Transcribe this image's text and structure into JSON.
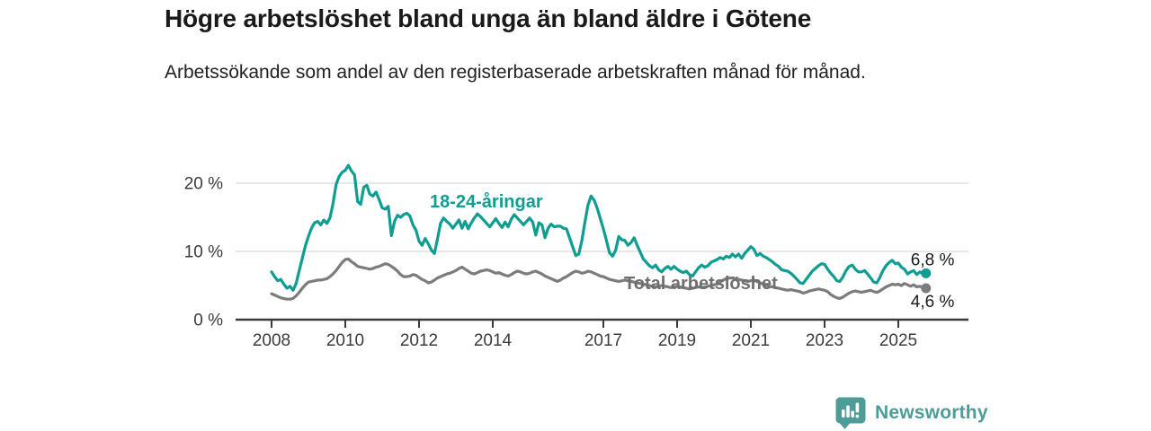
{
  "header": {
    "title": "Högre arbetslöshet bland unga än bland äldre i Götene",
    "subtitle": "Arbetssökande som andel av den registerbaserade arbetskraften månad för månad."
  },
  "footer": {
    "brand": "Newsworthy",
    "brand_color": "#4d9c98"
  },
  "chart_data": {
    "type": "line",
    "title": "Högre arbetslöshet bland unga än bland äldre i Götene",
    "xlabel": "",
    "ylabel": "",
    "x_start_year": 2008,
    "points_per_year": 12,
    "x_ticks": [
      2008,
      2010,
      2012,
      2014,
      2017,
      2019,
      2021,
      2023,
      2025
    ],
    "y_ticks": [
      {
        "value": 0,
        "label": "0 %"
      },
      {
        "value": 10,
        "label": "10 %"
      },
      {
        "value": 20,
        "label": "20 %"
      }
    ],
    "ylim": [
      0,
      24
    ],
    "grid": "horizontal",
    "colors": {
      "grid": "#d9d9d9",
      "axis": "#3a3a3a",
      "tick_text": "#3c3c3c",
      "end_label_text": "#1a1a1a"
    },
    "series": [
      {
        "name": "Total arbetslöshet",
        "color": "#7c7c7c",
        "label_color": "#6f6f6f",
        "end_label": "4,6 %",
        "values": [
          3.8,
          3.6,
          3.4,
          3.2,
          3.1,
          3.0,
          3.0,
          3.1,
          3.5,
          4.0,
          4.6,
          5.1,
          5.5,
          5.6,
          5.7,
          5.8,
          5.8,
          5.9,
          6.0,
          6.3,
          6.7,
          7.2,
          7.8,
          8.4,
          8.8,
          8.9,
          8.5,
          8.2,
          7.8,
          7.7,
          7.6,
          7.5,
          7.4,
          7.5,
          7.7,
          7.8,
          8.0,
          8.2,
          8.1,
          7.8,
          7.5,
          7.1,
          6.6,
          6.3,
          6.3,
          6.4,
          6.6,
          6.5,
          6.2,
          5.9,
          5.7,
          5.4,
          5.5,
          5.8,
          6.1,
          6.3,
          6.5,
          6.7,
          6.8,
          7.0,
          7.2,
          7.5,
          7.7,
          7.4,
          7.1,
          6.8,
          6.7,
          6.9,
          7.1,
          7.2,
          7.3,
          7.2,
          7.0,
          6.8,
          6.9,
          6.7,
          6.5,
          6.4,
          6.6,
          6.9,
          7.1,
          7.0,
          6.8,
          6.7,
          6.8,
          7.0,
          7.1,
          6.9,
          6.7,
          6.4,
          6.2,
          6.0,
          5.8,
          5.6,
          5.8,
          6.1,
          6.3,
          6.6,
          6.9,
          7.1,
          7.0,
          6.8,
          6.9,
          7.1,
          7.0,
          6.8,
          6.6,
          6.4,
          6.3,
          6.1,
          5.9,
          5.8,
          5.7,
          5.6,
          5.7,
          5.8,
          5.7,
          5.6,
          5.5,
          5.4,
          5.3,
          5.2,
          5.1,
          5.0,
          4.9,
          4.8,
          4.9,
          5.0,
          4.9,
          4.8,
          4.7,
          4.8,
          4.9,
          4.8,
          4.7,
          4.6,
          4.5,
          4.6,
          4.7,
          4.8,
          4.7,
          4.8,
          4.9,
          5.0,
          5.1,
          5.2,
          5.5,
          5.8,
          6.0,
          6.1,
          6.1,
          6.0,
          5.9,
          5.8,
          5.7,
          5.6,
          5.7,
          5.8,
          5.6,
          5.4,
          5.2,
          5.0,
          4.9,
          4.8,
          4.7,
          4.6,
          4.5,
          4.4,
          4.3,
          4.4,
          4.3,
          4.2,
          4.1,
          3.9,
          4.0,
          4.2,
          4.3,
          4.4,
          4.5,
          4.4,
          4.3,
          4.1,
          3.7,
          3.4,
          3.2,
          3.1,
          3.3,
          3.6,
          3.9,
          4.1,
          4.2,
          4.1,
          4.0,
          4.1,
          4.2,
          4.3,
          4.1,
          4.0,
          4.2,
          4.5,
          4.8,
          5.0,
          5.2,
          5.1,
          5.2,
          5.0,
          5.3,
          5.1,
          4.9,
          5.1,
          4.8,
          4.9,
          4.7,
          4.6
        ]
      },
      {
        "name": "18-24-åringar",
        "color": "#0e9e91",
        "label_color": "#0e9e91",
        "end_label": "6,8 %",
        "values": [
          7.0,
          6.3,
          5.7,
          5.9,
          5.2,
          4.6,
          4.9,
          4.3,
          5.3,
          7.2,
          9.0,
          10.8,
          12.2,
          13.4,
          14.2,
          14.4,
          13.9,
          14.6,
          14.1,
          14.9,
          17.0,
          19.8,
          21.0,
          21.6,
          21.9,
          22.6,
          21.8,
          21.2,
          17.3,
          16.9,
          19.4,
          19.7,
          18.4,
          18.1,
          18.7,
          17.6,
          16.4,
          16.2,
          16.6,
          12.3,
          14.4,
          15.3,
          15.0,
          15.4,
          15.6,
          15.2,
          13.9,
          13.1,
          11.5,
          10.9,
          11.9,
          11.1,
          10.2,
          9.7,
          11.8,
          14.1,
          14.9,
          14.4,
          14.0,
          13.4,
          14.0,
          14.6,
          13.4,
          14.4,
          13.3,
          14.2,
          14.9,
          15.5,
          15.1,
          14.6,
          14.1,
          13.6,
          14.2,
          14.8,
          14.1,
          13.5,
          14.3,
          13.6,
          14.7,
          15.4,
          14.9,
          14.4,
          13.9,
          14.4,
          14.9,
          14.3,
          12.4,
          14.2,
          13.9,
          12.0,
          13.4,
          14.0,
          13.6,
          13.7,
          13.7,
          13.4,
          13.3,
          12.0,
          10.7,
          9.4,
          9.6,
          11.6,
          14.3,
          16.8,
          18.1,
          17.5,
          16.3,
          14.8,
          13.3,
          11.6,
          9.8,
          9.3,
          10.2,
          12.2,
          11.7,
          11.6,
          10.9,
          11.3,
          12.0,
          10.9,
          9.9,
          8.9,
          8.4,
          7.9,
          7.6,
          8.0,
          7.3,
          7.0,
          7.5,
          7.8,
          7.4,
          7.8,
          7.4,
          7.1,
          6.9,
          7.1,
          6.6,
          6.4,
          7.0,
          7.6,
          8.0,
          7.7,
          7.9,
          8.4,
          8.6,
          8.8,
          9.1,
          8.9,
          9.3,
          9.1,
          9.6,
          9.2,
          9.6,
          9.0,
          9.7,
          10.2,
          10.7,
          10.3,
          9.4,
          9.7,
          9.3,
          9.1,
          8.8,
          8.5,
          8.1,
          7.8,
          7.3,
          7.2,
          7.1,
          6.8,
          6.4,
          5.9,
          5.4,
          5.3,
          5.9,
          6.5,
          7.1,
          7.5,
          7.9,
          8.2,
          8.1,
          7.4,
          6.8,
          6.3,
          5.7,
          5.6,
          6.3,
          7.2,
          7.8,
          8.0,
          7.4,
          7.0,
          7.0,
          7.2,
          6.7,
          6.1,
          5.5,
          5.4,
          6.2,
          7.2,
          7.9,
          8.4,
          8.7,
          8.2,
          8.3,
          7.7,
          7.4,
          6.7,
          7.0,
          7.2,
          6.6,
          7.0,
          6.7,
          6.8
        ]
      }
    ]
  }
}
